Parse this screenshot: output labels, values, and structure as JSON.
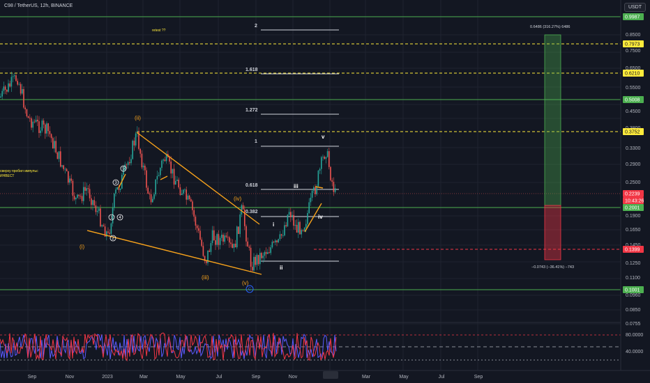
{
  "header": {
    "title": "C98 / TetherUS, 12h, BINANCE",
    "currency": "USDT"
  },
  "colors": {
    "background": "#131722",
    "up": "#26a69a",
    "down": "#ef5350",
    "wave_orange": "#f7a21b",
    "level_green": "#4caf50",
    "level_yellow": "#ffeb3b",
    "level_red": "#f23645",
    "rsi_red": "#f23645",
    "rsi_blue": "#5b5bff"
  },
  "axis": {
    "price_ticks": [
      "0.8500",
      "0.7500",
      "0.6500",
      "0.5500",
      "0.4500",
      "0.3800",
      "0.3300",
      "0.2900",
      "0.2500",
      "0.1900",
      "0.1650",
      "0.1450",
      "0.1250",
      "0.1100",
      "0.0960",
      "0.0850",
      "0.0755"
    ],
    "price_labels": [
      {
        "text": "0.9987",
        "kind": "green"
      },
      {
        "text": "0.7973",
        "kind": "yellow"
      },
      {
        "text": "0.6210",
        "kind": "yellow"
      },
      {
        "text": "0.5008",
        "kind": "green"
      },
      {
        "text": "0.3752",
        "kind": "yellow"
      },
      {
        "text": "0.2239",
        "kind": "red"
      },
      {
        "text": "10:43:26",
        "kind": "red"
      },
      {
        "text": "0.2001",
        "kind": "green"
      },
      {
        "text": "0.1399",
        "kind": "red"
      },
      {
        "text": "0.1001",
        "kind": "green"
      }
    ],
    "rsi_ticks": [
      "80.0000",
      "40.0000"
    ],
    "time_ticks": [
      "Sep",
      "Nov",
      "2023",
      "Mar",
      "May",
      "Jul",
      "Sep",
      "Nov",
      "2024",
      "Mar",
      "May",
      "Jul",
      "Sep"
    ]
  },
  "fib": {
    "levels": [
      "2",
      "1.618",
      "1.272",
      "1",
      "0.618",
      "0.382"
    ]
  },
  "waves": {
    "orange": [
      "(i)",
      "(ii)",
      "(iii)",
      "(iv)",
      "(v)"
    ],
    "circled": [
      "1",
      "2",
      "3",
      "4",
      "5"
    ],
    "white": [
      "i",
      "ii",
      "iii",
      "iv",
      "v"
    ],
    "letter": "C"
  },
  "annotations": {
    "retest": "retest ??",
    "left_text_1": "сверху пробил импульс",
    "left_text_2": "ИНВЕСТ",
    "target": "0.6486 (316.27%) 6486",
    "stop": "−0.0743 (−36.41%) −743"
  }
}
